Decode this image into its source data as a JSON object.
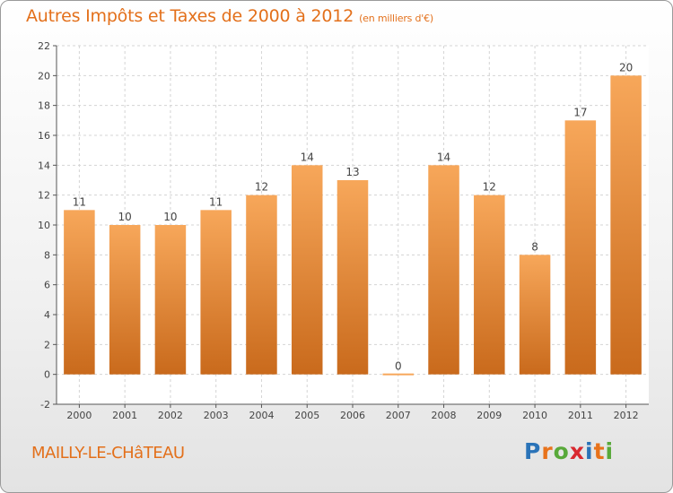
{
  "header": {
    "title": "Autres Impôts et Taxes de 2000 à 2012",
    "subtitle": "(en milliers d'€)"
  },
  "footer": {
    "town": "MAILLY-LE-CHâTEAU",
    "logo_letters": [
      "P",
      "r",
      "o",
      "x",
      "i",
      "t",
      "i"
    ],
    "logo_colors": [
      "#2a73b8",
      "#e8731c",
      "#58a93a",
      "#d9282f",
      "#2a73b8",
      "#e8731c",
      "#58a93a"
    ]
  },
  "chart_data": {
    "type": "bar",
    "categories": [
      "2000",
      "2001",
      "2002",
      "2003",
      "2004",
      "2005",
      "2006",
      "2007",
      "2008",
      "2009",
      "2010",
      "2011",
      "2012"
    ],
    "values": [
      11,
      10,
      10,
      11,
      12,
      14,
      13,
      0,
      14,
      12,
      8,
      17,
      20
    ],
    "title": "Autres Impôts et Taxes de 2000 à 2012",
    "xlabel": "",
    "ylabel": "",
    "ylim": [
      -2,
      22
    ],
    "yticks": [
      -2,
      0,
      2,
      4,
      6,
      8,
      10,
      12,
      14,
      16,
      18,
      20,
      22
    ],
    "grid": true,
    "bar_color_top": "#f7a75a",
    "bar_color_bottom": "#c96a1c"
  }
}
